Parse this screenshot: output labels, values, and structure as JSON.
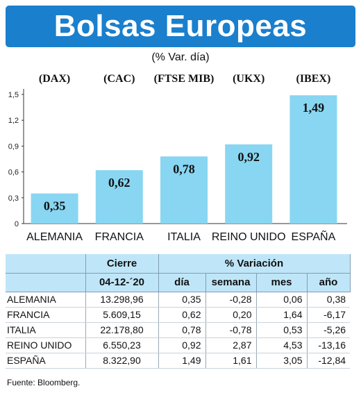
{
  "colors": {
    "banner": "#1a7fcd",
    "bar": "#88d6f2",
    "table_header": "#bfe6f8",
    "axis": "#333333",
    "grid": "#d6eaf5"
  },
  "title": "Bolsas Europeas",
  "subtitle": "(% Var. día)",
  "chart_data": {
    "type": "bar",
    "title": "",
    "xlabel": "",
    "ylabel": "",
    "ylim": [
      0,
      1.5
    ],
    "yticks": [
      "0",
      "0,3",
      "0,6",
      "0,9",
      "1,2",
      "1,5"
    ],
    "ytick_values": [
      0,
      0.3,
      0.6,
      0.9,
      1.2,
      1.5
    ],
    "categories": [
      "ALEMANIA",
      "FRANCIA",
      "ITALIA",
      "REINO UNIDO",
      "ESPAÑA"
    ],
    "codes": [
      "(DAX)",
      "(CAC)",
      "(FTSE MIB)",
      "(UKX)",
      "(IBEX)"
    ],
    "values": [
      0.35,
      0.62,
      0.78,
      0.92,
      1.49
    ],
    "value_labels": [
      "0,35",
      "0,62",
      "0,78",
      "0,92",
      "1,49"
    ],
    "grid": false
  },
  "table": {
    "cierre_header": "Cierre",
    "variacion_header": "% Variación",
    "date": "04-12-´20",
    "columns": [
      "día",
      "semana",
      "mes",
      "año"
    ],
    "rows": [
      {
        "country": "ALEMANIA",
        "cierre": "13.298,96",
        "dia": "0,35",
        "semana": "-0,28",
        "mes": "0,06",
        "ano": "0,38"
      },
      {
        "country": "FRANCIA",
        "cierre": "5.609,15",
        "dia": "0,62",
        "semana": "0,20",
        "mes": "1,64",
        "ano": "-6,17"
      },
      {
        "country": "ITALIA",
        "cierre": "22.178,80",
        "dia": "0,78",
        "semana": "-0,78",
        "mes": "0,53",
        "ano": "-5,26"
      },
      {
        "country": "REINO UNIDO",
        "cierre": "6.550,23",
        "dia": "0,92",
        "semana": "2,87",
        "mes": "4,53",
        "ano": "-13,16"
      },
      {
        "country": "ESPAÑA",
        "cierre": "8.322,90",
        "dia": "1,49",
        "semana": "1,61",
        "mes": "3,05",
        "ano": "-12,84"
      }
    ]
  },
  "source": "Fuente: Bloomberg."
}
